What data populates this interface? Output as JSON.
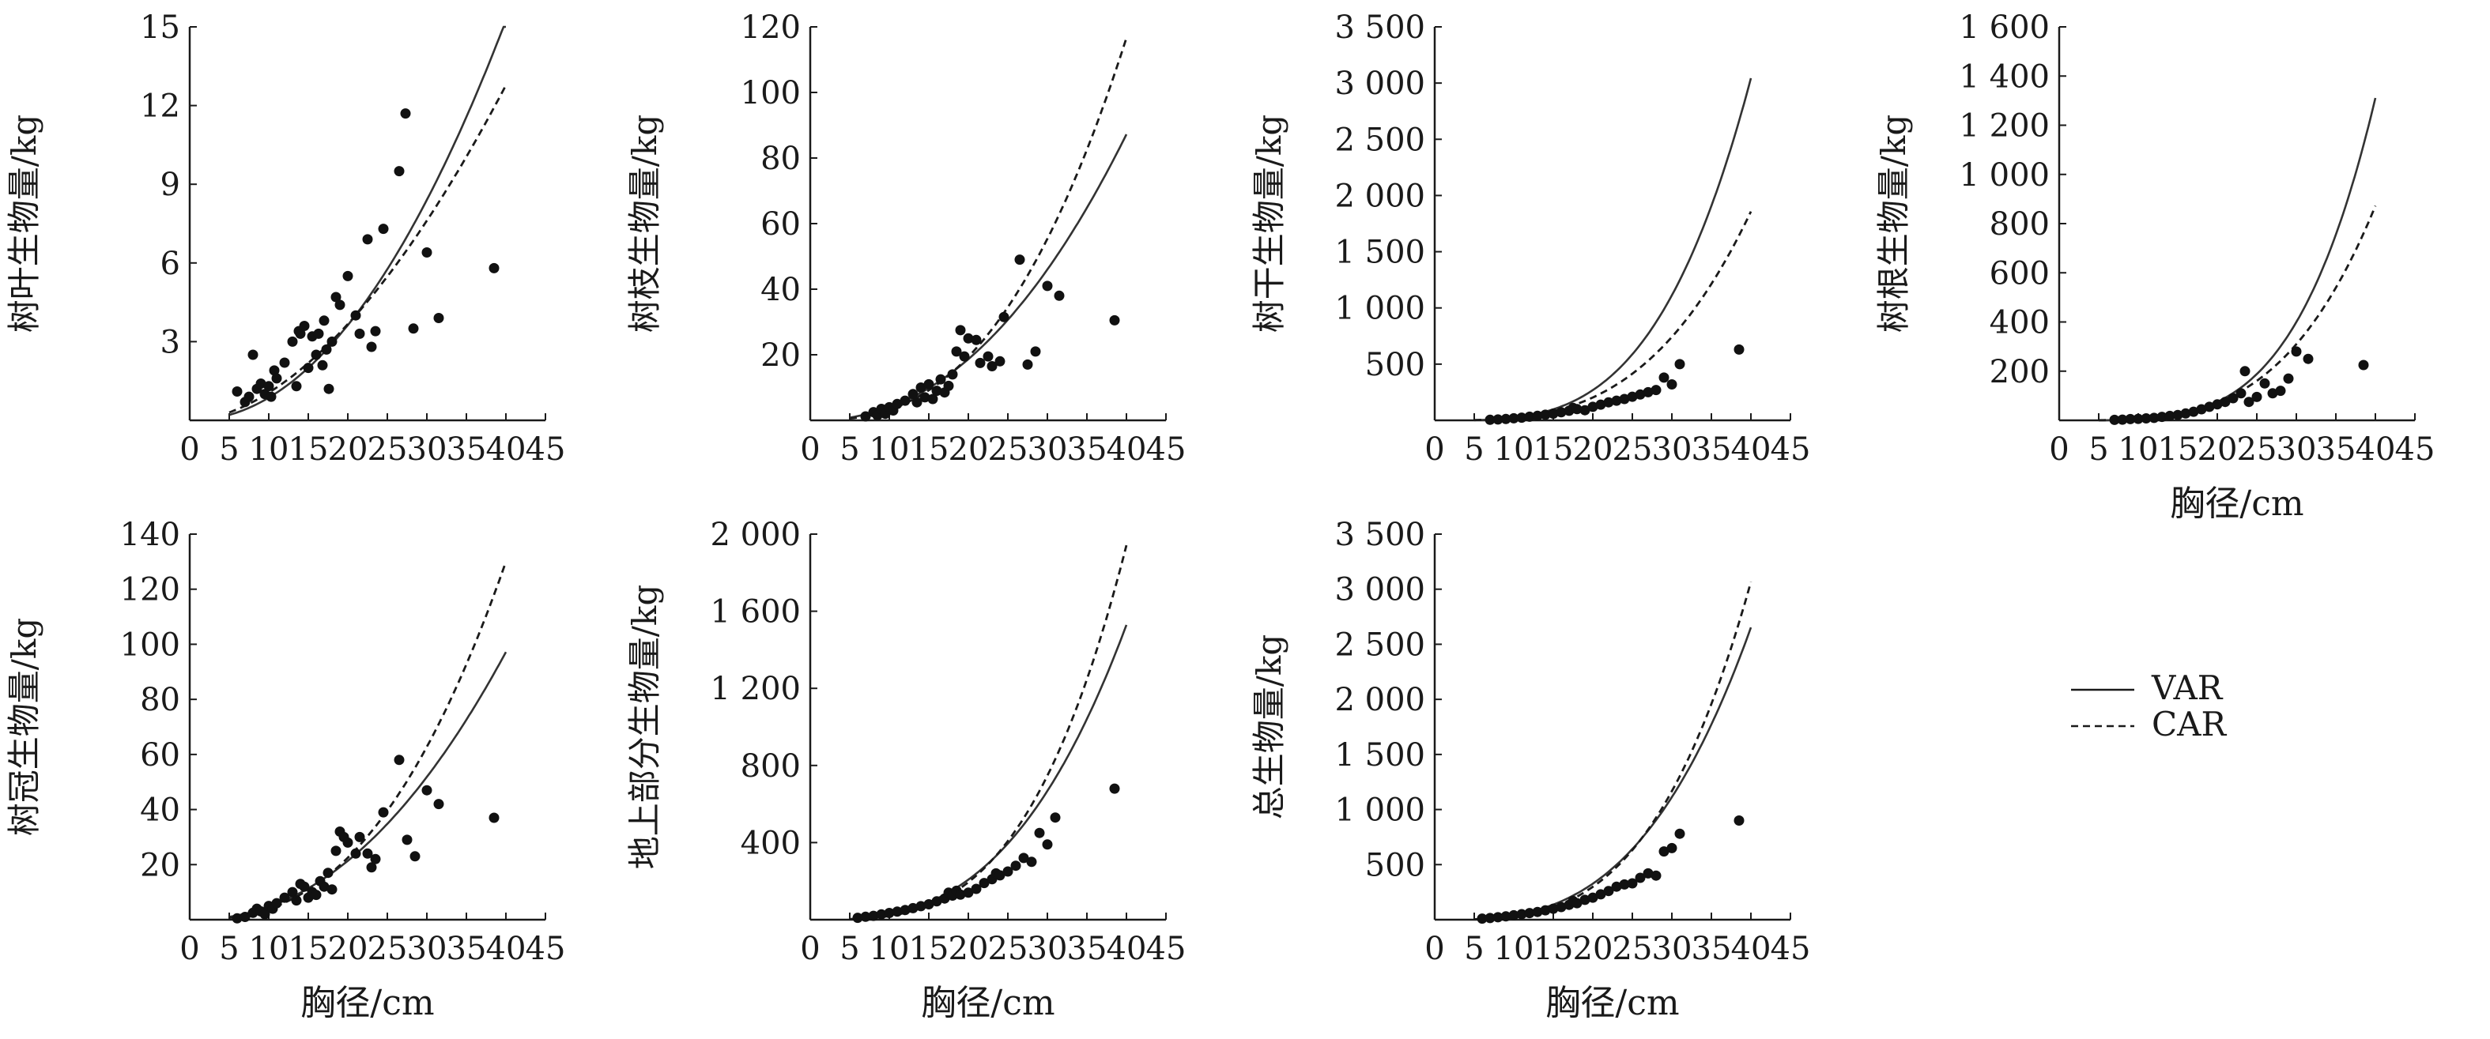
{
  "legend": {
    "items": [
      {
        "label": "VAR",
        "style": "solid"
      },
      {
        "label": "CAR",
        "style": "dashed"
      }
    ]
  },
  "chart_data": [
    {
      "type": "scatter",
      "name": "leaf",
      "ylabel": "树叶生物量/kg",
      "xlabel": "",
      "xlim": [
        0,
        45
      ],
      "ylim": [
        0,
        15
      ],
      "xticks": [
        0,
        5,
        10,
        15,
        20,
        25,
        30,
        35,
        40,
        45
      ],
      "yticks": [
        {
          "v": 3,
          "t": "3"
        },
        {
          "v": 6,
          "t": "6"
        },
        {
          "v": 9,
          "t": "9"
        },
        {
          "v": 12,
          "t": "12"
        },
        {
          "v": 15,
          "t": "15"
        }
      ],
      "var": {
        "a": 0.00736,
        "b": 2.07
      },
      "car": {
        "a": 0.0167,
        "b": 1.8
      },
      "points": [
        [
          6,
          1.1
        ],
        [
          7,
          0.7
        ],
        [
          7.5,
          0.9
        ],
        [
          8,
          2.5
        ],
        [
          8.5,
          1.2
        ],
        [
          9,
          1.4
        ],
        [
          9.5,
          1.0
        ],
        [
          10,
          1.3
        ],
        [
          10.3,
          0.9
        ],
        [
          10.7,
          1.9
        ],
        [
          11,
          1.6
        ],
        [
          12,
          2.2
        ],
        [
          13,
          3.0
        ],
        [
          13.5,
          1.3
        ],
        [
          13.8,
          3.4
        ],
        [
          14,
          3.3
        ],
        [
          14.5,
          3.6
        ],
        [
          15,
          2.0
        ],
        [
          15.5,
          3.2
        ],
        [
          16,
          2.5
        ],
        [
          16.3,
          3.3
        ],
        [
          16.8,
          2.1
        ],
        [
          17,
          3.8
        ],
        [
          17.3,
          2.7
        ],
        [
          17.6,
          1.2
        ],
        [
          18,
          3.0
        ],
        [
          18.5,
          4.7
        ],
        [
          19,
          4.4
        ],
        [
          20,
          5.5
        ],
        [
          21,
          4.0
        ],
        [
          21.5,
          3.3
        ],
        [
          22.5,
          6.9
        ],
        [
          23,
          2.8
        ],
        [
          23.5,
          3.4
        ],
        [
          24.5,
          7.3
        ],
        [
          26.5,
          9.5
        ],
        [
          27.3,
          11.7
        ],
        [
          28.3,
          3.5
        ],
        [
          30,
          6.4
        ],
        [
          31.5,
          3.9
        ],
        [
          38.5,
          5.8
        ]
      ]
    },
    {
      "type": "scatter",
      "name": "branch",
      "ylabel": "树枝生物量/kg",
      "xlabel": "",
      "xlim": [
        0,
        45
      ],
      "ylim": [
        0,
        120
      ],
      "xticks": [
        0,
        5,
        10,
        15,
        20,
        25,
        30,
        35,
        40,
        45
      ],
      "yticks": [
        {
          "v": 20,
          "t": "20"
        },
        {
          "v": 40,
          "t": "40"
        },
        {
          "v": 60,
          "t": "60"
        },
        {
          "v": 80,
          "t": "80"
        },
        {
          "v": 100,
          "t": "100"
        },
        {
          "v": 120,
          "t": "120"
        }
      ],
      "var": {
        "a": 0.02386,
        "b": 2.224
      },
      "car": {
        "a": 0.00827,
        "b": 2.59
      },
      "points": [
        [
          7,
          1.2
        ],
        [
          8,
          2.5
        ],
        [
          8.5,
          1.5
        ],
        [
          9,
          3.5
        ],
        [
          9.5,
          2.0
        ],
        [
          10,
          4.0
        ],
        [
          10.5,
          3.0
        ],
        [
          11,
          5.0
        ],
        [
          12,
          6.0
        ],
        [
          13,
          8.0
        ],
        [
          13.5,
          5.5
        ],
        [
          14,
          10.0
        ],
        [
          14.5,
          7.0
        ],
        [
          15,
          11.0
        ],
        [
          15.5,
          6.5
        ],
        [
          16,
          9.0
        ],
        [
          16.5,
          12.5
        ],
        [
          17,
          8.5
        ],
        [
          17.5,
          10.5
        ],
        [
          18,
          14.0
        ],
        [
          18.5,
          21.0
        ],
        [
          19,
          27.5
        ],
        [
          19.5,
          19.5
        ],
        [
          20,
          25.0
        ],
        [
          21,
          24.5
        ],
        [
          21.5,
          17.5
        ],
        [
          22.5,
          19.5
        ],
        [
          23,
          16.5
        ],
        [
          24,
          18.0
        ],
        [
          24.5,
          31.5
        ],
        [
          26.5,
          49.0
        ],
        [
          27.5,
          17.0
        ],
        [
          28.5,
          21.0
        ],
        [
          30,
          41.0
        ],
        [
          31.5,
          38.0
        ],
        [
          38.5,
          30.5
        ]
      ]
    },
    {
      "type": "scatter",
      "name": "stem",
      "ylabel": "树干生物量/kg",
      "xlabel": "",
      "xlim": [
        0,
        45
      ],
      "ylim": [
        0,
        3500
      ],
      "xticks": [
        0,
        5,
        10,
        15,
        20,
        25,
        30,
        35,
        40,
        45
      ],
      "yticks": [
        {
          "v": 500,
          "t": "500"
        },
        {
          "v": 1000,
          "t": "1 000"
        },
        {
          "v": 1500,
          "t": "1 500"
        },
        {
          "v": 2000,
          "t": "2 000"
        },
        {
          "v": 2500,
          "t": "2 500"
        },
        {
          "v": 3000,
          "t": "3 000"
        },
        {
          "v": 3500,
          "t": "3 500"
        }
      ],
      "var": {
        "a": 0.00752,
        "b": 3.5
      },
      "car": {
        "a": 0.0144,
        "b": 3.19
      },
      "points": [
        [
          7,
          5
        ],
        [
          8,
          8
        ],
        [
          9,
          12
        ],
        [
          10,
          18
        ],
        [
          11,
          24
        ],
        [
          12,
          32
        ],
        [
          13,
          40
        ],
        [
          14,
          50
        ],
        [
          15,
          60
        ],
        [
          16,
          72
        ],
        [
          17,
          85
        ],
        [
          17.5,
          110
        ],
        [
          18,
          100
        ],
        [
          19,
          90
        ],
        [
          20,
          120
        ],
        [
          21,
          140
        ],
        [
          22,
          160
        ],
        [
          23,
          175
        ],
        [
          24,
          190
        ],
        [
          25,
          210
        ],
        [
          26,
          230
        ],
        [
          27,
          250
        ],
        [
          28,
          270
        ],
        [
          29,
          380
        ],
        [
          30,
          320
        ],
        [
          31,
          500
        ],
        [
          38.5,
          630
        ]
      ]
    },
    {
      "type": "scatter",
      "name": "root",
      "ylabel": "树根生物量/kg",
      "xlabel": "胸径/cm",
      "xlim": [
        0,
        45
      ],
      "ylim": [
        0,
        1600
      ],
      "xticks": [
        0,
        5,
        10,
        15,
        20,
        25,
        30,
        35,
        40,
        45
      ],
      "yticks": [
        {
          "v": 200,
          "t": "200"
        },
        {
          "v": 400,
          "t": "400"
        },
        {
          "v": 600,
          "t": "600"
        },
        {
          "v": 800,
          "t": "800"
        },
        {
          "v": 1000,
          "t": "1 000"
        },
        {
          "v": 1200,
          "t": "1 200"
        },
        {
          "v": 1400,
          "t": "1 400"
        },
        {
          "v": 1600,
          "t": "1 600"
        }
      ],
      "var": {
        "a": 0.000317,
        "b": 4.13
      },
      "car": {
        "a": 0.00149,
        "b": 3.6
      },
      "points": [
        [
          7,
          2
        ],
        [
          8,
          3
        ],
        [
          9,
          5
        ],
        [
          10,
          6
        ],
        [
          11,
          8
        ],
        [
          12,
          10
        ],
        [
          13,
          14
        ],
        [
          14,
          18
        ],
        [
          15,
          22
        ],
        [
          16,
          28
        ],
        [
          17,
          35
        ],
        [
          18,
          45
        ],
        [
          19,
          55
        ],
        [
          20,
          65
        ],
        [
          21,
          75
        ],
        [
          22,
          90
        ],
        [
          23,
          110
        ],
        [
          23.5,
          200
        ],
        [
          24,
          75
        ],
        [
          25,
          95
        ],
        [
          26,
          150
        ],
        [
          27,
          110
        ],
        [
          28,
          120
        ],
        [
          29,
          170
        ],
        [
          30,
          280
        ],
        [
          31.5,
          250
        ],
        [
          38.5,
          225
        ]
      ]
    },
    {
      "type": "scatter",
      "name": "crown",
      "ylabel": "树冠生物量/kg",
      "xlabel": "胸径/cm",
      "xlim": [
        0,
        45
      ],
      "ylim": [
        0,
        140
      ],
      "xticks": [
        0,
        5,
        10,
        15,
        20,
        25,
        30,
        35,
        40,
        45
      ],
      "yticks": [
        {
          "v": 20,
          "t": "20"
        },
        {
          "v": 40,
          "t": "40"
        },
        {
          "v": 60,
          "t": "60"
        },
        {
          "v": 80,
          "t": "80"
        },
        {
          "v": 100,
          "t": "100"
        },
        {
          "v": 120,
          "t": "120"
        },
        {
          "v": 140,
          "t": "140"
        }
      ],
      "var": {
        "a": 0.0307,
        "b": 2.185
      },
      "car": {
        "a": 0.0115,
        "b": 2.53
      },
      "points": [
        [
          6,
          0.5
        ],
        [
          7,
          1
        ],
        [
          8,
          2.5
        ],
        [
          8.5,
          4
        ],
        [
          9,
          3
        ],
        [
          9.5,
          2
        ],
        [
          10,
          5
        ],
        [
          10.5,
          4
        ],
        [
          11,
          6
        ],
        [
          12,
          8
        ],
        [
          13,
          10
        ],
        [
          13.5,
          7
        ],
        [
          14,
          13
        ],
        [
          14.5,
          12
        ],
        [
          15,
          8
        ],
        [
          15.5,
          10
        ],
        [
          16,
          9
        ],
        [
          16.5,
          14
        ],
        [
          17,
          12
        ],
        [
          17.5,
          17
        ],
        [
          18,
          11
        ],
        [
          18.5,
          25
        ],
        [
          19,
          32
        ],
        [
          19.5,
          30
        ],
        [
          20,
          28
        ],
        [
          21,
          24
        ],
        [
          21.5,
          30
        ],
        [
          22.5,
          24
        ],
        [
          23,
          19
        ],
        [
          23.5,
          22
        ],
        [
          24.5,
          39
        ],
        [
          26.5,
          58
        ],
        [
          27.5,
          29
        ],
        [
          28.5,
          23
        ],
        [
          30,
          47
        ],
        [
          31.5,
          42
        ],
        [
          38.5,
          37
        ]
      ]
    },
    {
      "type": "scatter",
      "name": "aboveground",
      "ylabel": "地上部分生物量/kg",
      "xlabel": "胸径/cm",
      "xlim": [
        0,
        45
      ],
      "ylim": [
        0,
        2000
      ],
      "xticks": [
        0,
        5,
        10,
        15,
        20,
        25,
        30,
        35,
        40,
        45
      ],
      "yticks": [
        {
          "v": 400,
          "t": "400"
        },
        {
          "v": 800,
          "t": "800"
        },
        {
          "v": 1200,
          "t": "1 200"
        },
        {
          "v": 1600,
          "t": "1 600"
        },
        {
          "v": 2000,
          "t": "2 000"
        }
      ],
      "var": {
        "a": 0.0372,
        "b": 2.88
      },
      "car": {
        "a": 0.00932,
        "b": 3.32
      },
      "points": [
        [
          6,
          10
        ],
        [
          7,
          15
        ],
        [
          8,
          20
        ],
        [
          9,
          28
        ],
        [
          10,
          35
        ],
        [
          11,
          42
        ],
        [
          12,
          50
        ],
        [
          13,
          60
        ],
        [
          14,
          70
        ],
        [
          15,
          80
        ],
        [
          16,
          95
        ],
        [
          17,
          110
        ],
        [
          17.5,
          140
        ],
        [
          18,
          125
        ],
        [
          18.5,
          150
        ],
        [
          19,
          130
        ],
        [
          20,
          140
        ],
        [
          21,
          160
        ],
        [
          22,
          190
        ],
        [
          23,
          210
        ],
        [
          23.5,
          240
        ],
        [
          24,
          230
        ],
        [
          25,
          250
        ],
        [
          26,
          280
        ],
        [
          27,
          320
        ],
        [
          28,
          300
        ],
        [
          29,
          450
        ],
        [
          30,
          390
        ],
        [
          31,
          530
        ],
        [
          38.5,
          680
        ]
      ]
    },
    {
      "type": "scatter",
      "name": "total",
      "ylabel": "总生物量/kg",
      "xlabel": "胸径/cm",
      "xlim": [
        0,
        45
      ],
      "ylim": [
        0,
        3500
      ],
      "xticks": [
        0,
        5,
        10,
        15,
        20,
        25,
        30,
        35,
        40,
        45
      ],
      "yticks": [
        {
          "v": 500,
          "t": "500"
        },
        {
          "v": 1000,
          "t": "1 000"
        },
        {
          "v": 1500,
          "t": "1 500"
        },
        {
          "v": 2000,
          "t": "2 000"
        },
        {
          "v": 2500,
          "t": "2 500"
        },
        {
          "v": 3000,
          "t": "3 000"
        },
        {
          "v": 3500,
          "t": "3 500"
        }
      ],
      "var": {
        "a": 0.0385,
        "b": 3.02
      },
      "car": {
        "a": 0.0127,
        "b": 3.36
      },
      "points": [
        [
          6,
          10
        ],
        [
          7,
          15
        ],
        [
          8,
          22
        ],
        [
          9,
          30
        ],
        [
          10,
          40
        ],
        [
          11,
          50
        ],
        [
          12,
          60
        ],
        [
          13,
          70
        ],
        [
          14,
          85
        ],
        [
          15,
          100
        ],
        [
          16,
          115
        ],
        [
          17,
          135
        ],
        [
          17.5,
          170
        ],
        [
          18,
          150
        ],
        [
          19,
          180
        ],
        [
          20,
          200
        ],
        [
          21,
          230
        ],
        [
          22,
          260
        ],
        [
          23,
          300
        ],
        [
          24,
          320
        ],
        [
          25,
          330
        ],
        [
          26,
          380
        ],
        [
          27,
          420
        ],
        [
          28,
          400
        ],
        [
          29,
          620
        ],
        [
          30,
          650
        ],
        [
          31,
          780
        ],
        [
          38.5,
          900
        ]
      ]
    }
  ]
}
